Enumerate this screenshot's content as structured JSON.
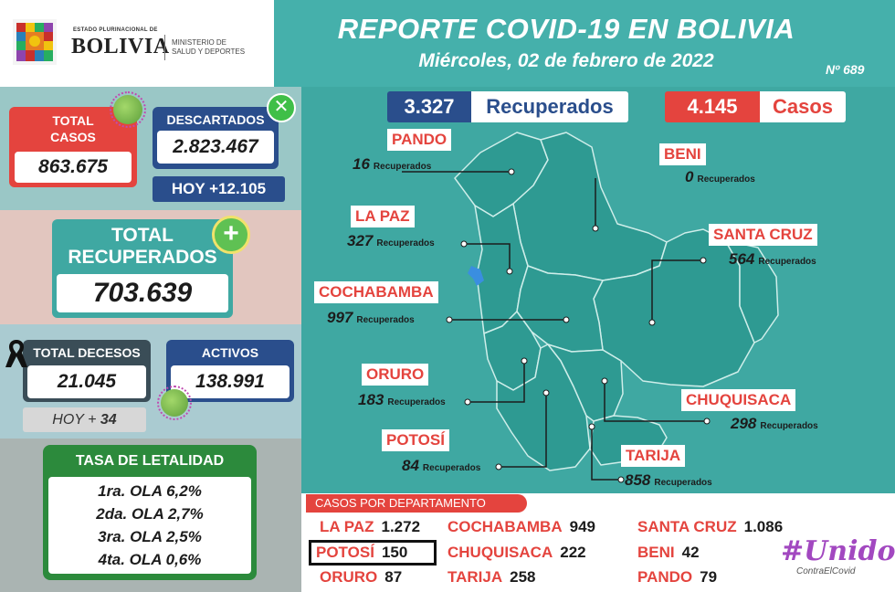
{
  "logo": {
    "small": "ESTADO PLURINACIONAL DE",
    "big": "BOLIVIA",
    "ministry_line1": "MINISTERIO DE",
    "ministry_line2": "SALUD Y DEPORTES"
  },
  "header": {
    "title": "REPORTE COVID-19 EN BOLIVIA",
    "date": "Miércoles, 02 de febrero de 2022",
    "report_number": "Nº 689"
  },
  "total_casos": {
    "label_line1": "TOTAL",
    "label_line2": "CASOS",
    "value": "863.675"
  },
  "descartados": {
    "label": "DESCARTADOS",
    "value": "2.823.467",
    "today": "HOY +12.105"
  },
  "total_recuperados": {
    "label_line1": "TOTAL",
    "label_line2": "RECUPERADOS",
    "value": "703.639"
  },
  "total_decesos": {
    "label": "TOTAL DECESOS",
    "value": "21.045",
    "today_label": "HOY +",
    "today_value": "34"
  },
  "activos": {
    "label": "ACTIVOS",
    "value": "138.991"
  },
  "letalidad": {
    "title": "TASA DE LETALIDAD",
    "rows": [
      "1ra. OLA 6,2%",
      "2da. OLA 2,7%",
      "3ra. OLA 2,5%",
      "4ta. OLA 0,6%"
    ]
  },
  "daily": {
    "recuperados_value": "3.327",
    "recuperados_label": "Recuperados",
    "casos_value": "4.145",
    "casos_label": "Casos"
  },
  "map_unit": "Recuperados",
  "departments": [
    {
      "name": "PANDO",
      "recuperados": "16"
    },
    {
      "name": "BENI",
      "recuperados": "0"
    },
    {
      "name": "LA PAZ",
      "recuperados": "327"
    },
    {
      "name": "SANTA CRUZ",
      "recuperados": "564"
    },
    {
      "name": "COCHABAMBA",
      "recuperados": "997"
    },
    {
      "name": "ORURO",
      "recuperados": "183"
    },
    {
      "name": "CHUQUISACA",
      "recuperados": "298"
    },
    {
      "name": "POTOSÍ",
      "recuperados": "84"
    },
    {
      "name": "TARIJA",
      "recuperados": "858"
    }
  ],
  "cases_by_dept": {
    "title": "CASOS POR DEPARTAMENTO",
    "items": [
      {
        "name": "LA PAZ",
        "value": "1.272"
      },
      {
        "name": "COCHABAMBA",
        "value": "949"
      },
      {
        "name": "SANTA CRUZ",
        "value": "1.086"
      },
      {
        "name": "POTOSÍ",
        "value": "150"
      },
      {
        "name": "CHUQUISACA",
        "value": "222"
      },
      {
        "name": "BENI",
        "value": "42"
      },
      {
        "name": "ORURO",
        "value": "87"
      },
      {
        "name": "TARIJA",
        "value": "258"
      },
      {
        "name": "PANDO",
        "value": "79"
      }
    ]
  },
  "campaign": {
    "main": "#Unidos",
    "sub": "ContraElCovid"
  },
  "colors": {
    "teal": "#3fa8a2",
    "red": "#e4443e",
    "navy": "#2a4e8c",
    "green": "#2c8a3c"
  }
}
